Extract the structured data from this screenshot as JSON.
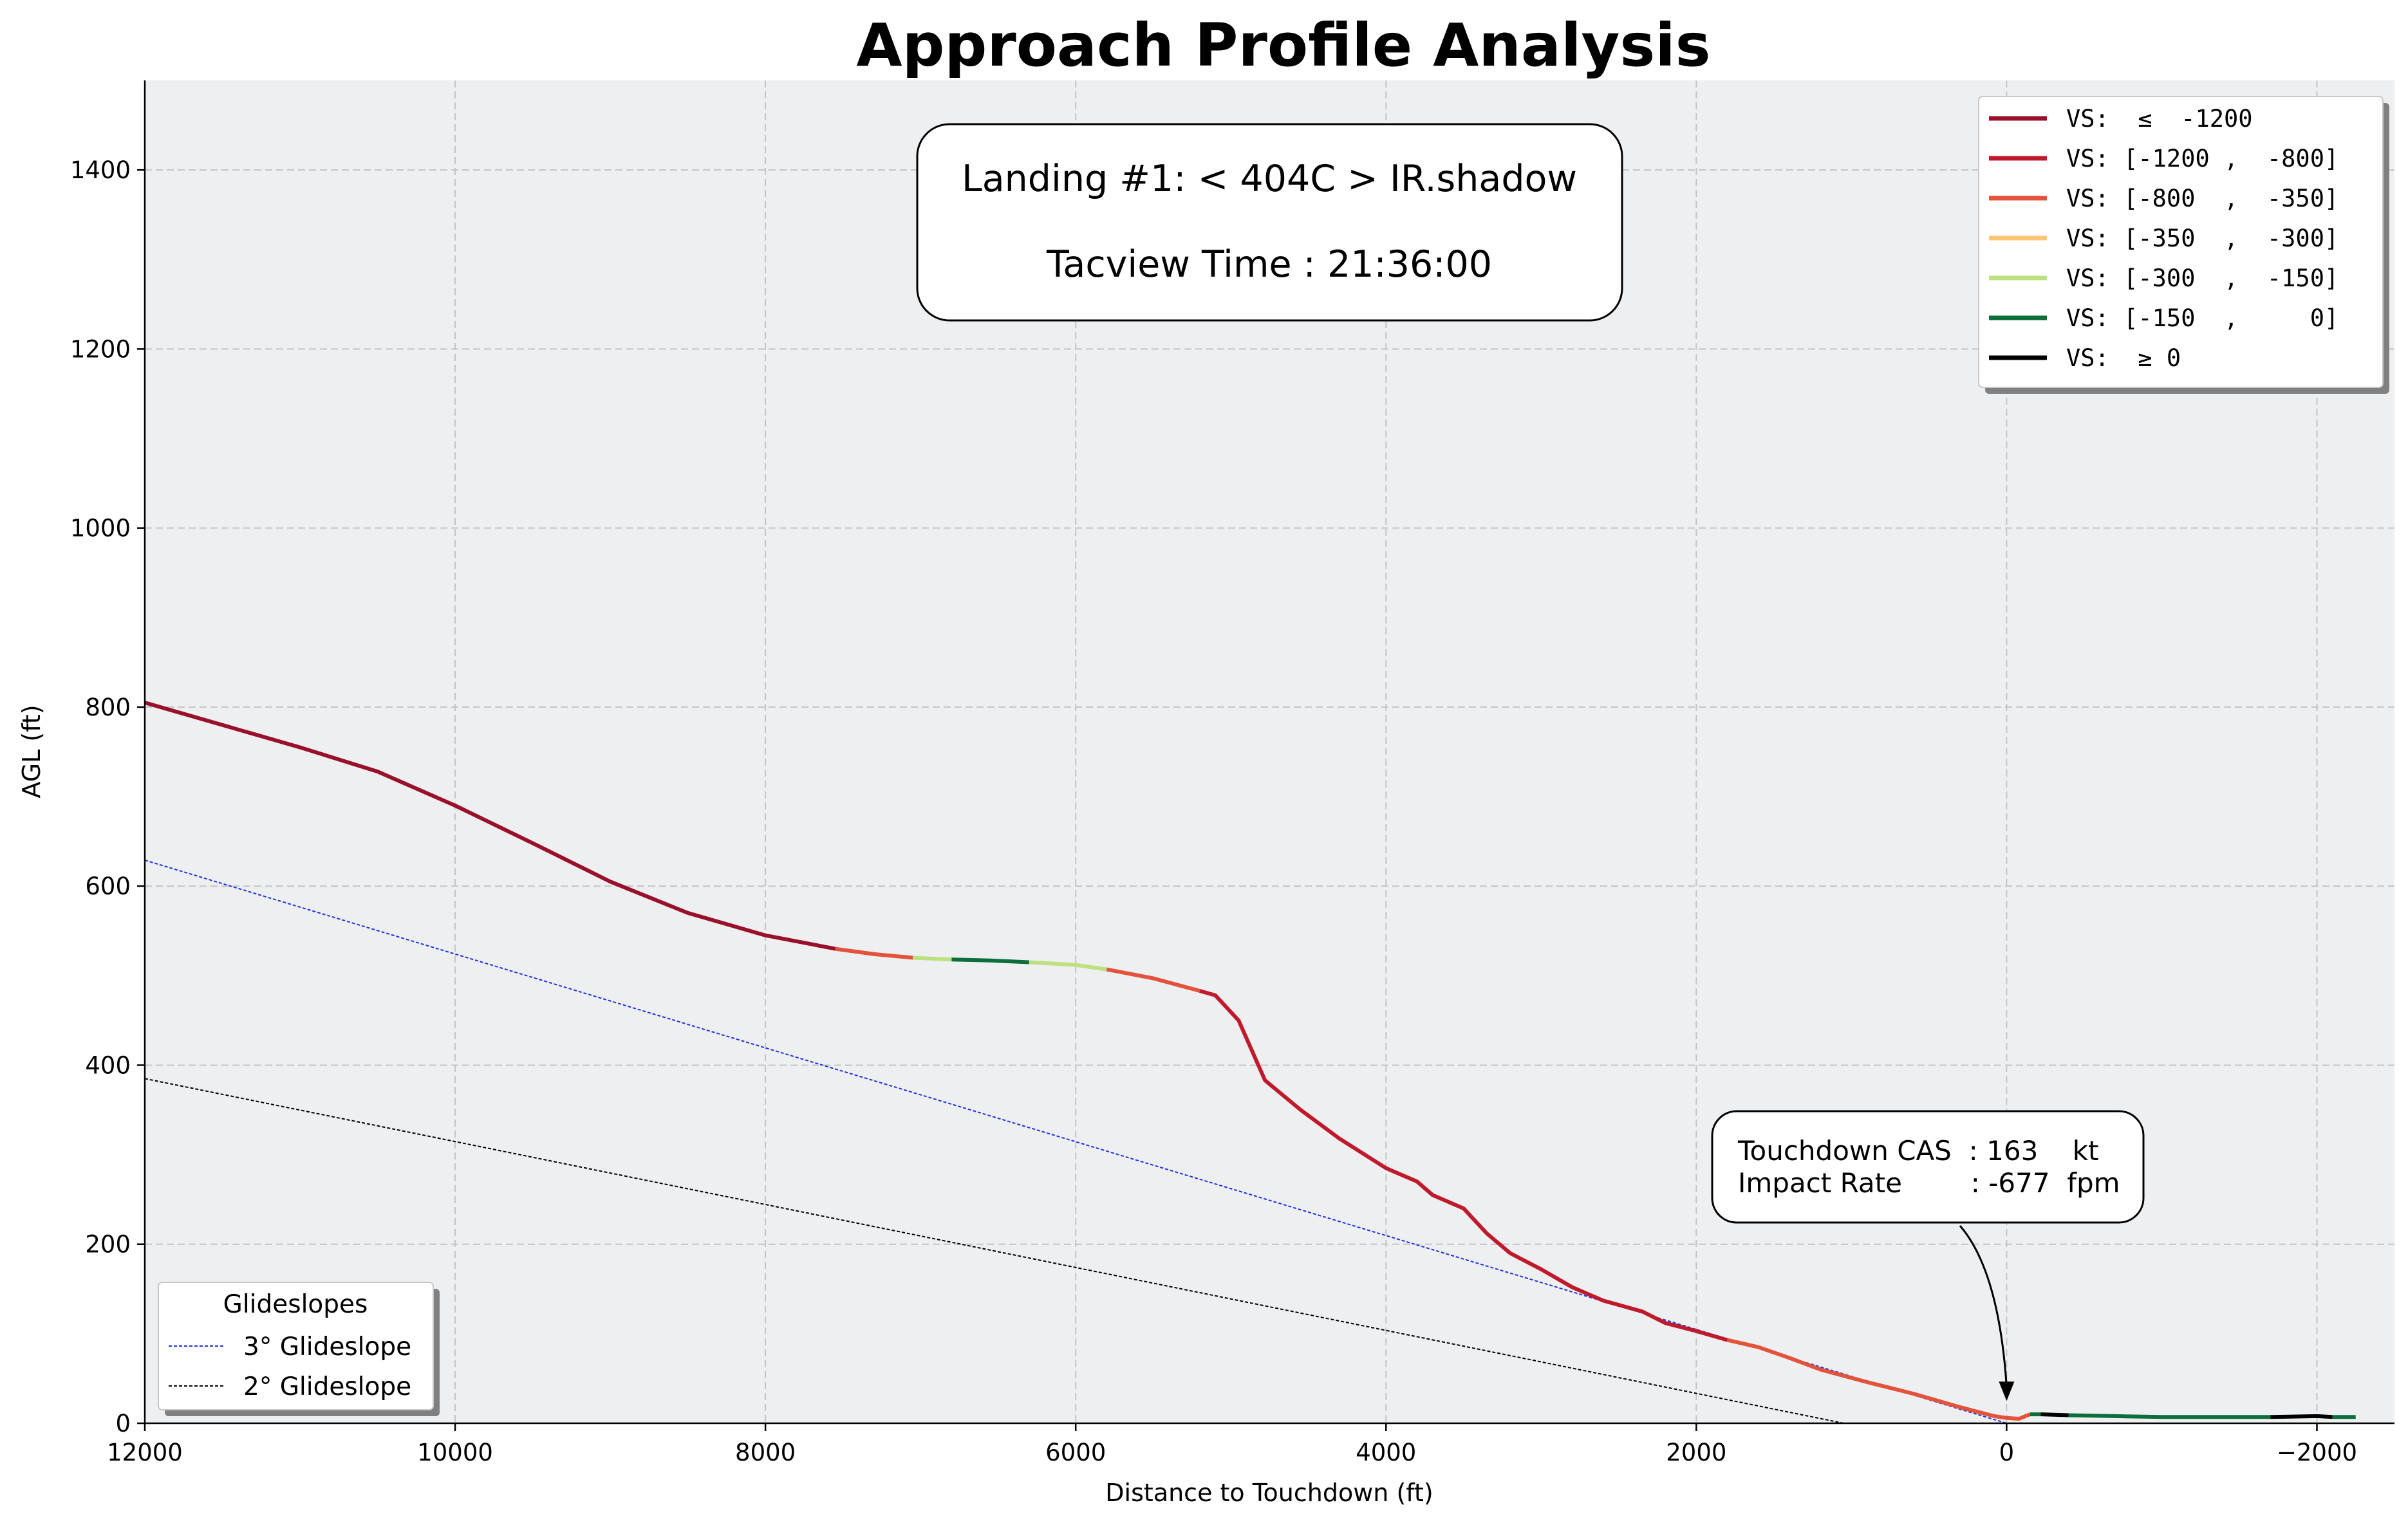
{
  "chart_data": {
    "type": "line",
    "title": "Approach Profile Analysis",
    "xlabel": "Distance to Touchdown (ft)",
    "ylabel": "AGL (ft)",
    "xlim": [
      12000,
      -2500
    ],
    "ylim": [
      0,
      1500
    ],
    "x_axis_inverted": true,
    "xticks": [
      12000,
      10000,
      8000,
      6000,
      4000,
      2000,
      0,
      -2000
    ],
    "xtick_labels": [
      "12000",
      "10000",
      "8000",
      "6000",
      "4000",
      "2000",
      "0",
      "−2000"
    ],
    "yticks": [
      0,
      200,
      400,
      600,
      800,
      1000,
      1200,
      1400
    ],
    "ytick_labels": [
      "0",
      "200",
      "400",
      "600",
      "800",
      "1000",
      "1200",
      "1400"
    ],
    "grid": true,
    "info_box": {
      "line1": "Landing #1: < 404C > IR.shadow",
      "line2": "Tacview Time : 21:36:00"
    },
    "annotation": {
      "line1": "Touchdown CAS  : 163    kt",
      "line2": "Impact Rate        : -677  fpm",
      "arrow_target": [
        0,
        25
      ]
    },
    "vs_legend": {
      "placement": "top-right",
      "entries": [
        {
          "label": "VS:  ≤  -1200",
          "color": "#99102a"
        },
        {
          "label": "VS: [-1200 ,  -800]",
          "color": "#bf1a2b"
        },
        {
          "label": "VS: [-800  ,  -350]",
          "color": "#e3523a"
        },
        {
          "label": "VS: [-350  ,  -300]",
          "color": "#fdc672"
        },
        {
          "label": "VS: [-300  ,  -150]",
          "color": "#bde17f"
        },
        {
          "label": "VS: [-150  ,     0]",
          "color": "#0c6e3a"
        },
        {
          "label": "VS:  ≥ 0",
          "color": "#000000"
        }
      ]
    },
    "glideslope_legend": {
      "title": "Glideslopes",
      "placement": "lower-left",
      "entries": [
        {
          "label": "3° Glideslope",
          "color": "#1f2fe0"
        },
        {
          "label": "2° Glideslope",
          "color": "#000000"
        }
      ]
    },
    "glideslopes": [
      {
        "name": "3° Glideslope",
        "color": "#1f2fe0",
        "points": [
          [
            12000,
            629
          ],
          [
            0,
            0
          ]
        ]
      },
      {
        "name": "2° Glideslope",
        "color": "#000000",
        "points": [
          [
            12000,
            385
          ],
          [
            1050,
            0
          ]
        ]
      }
    ],
    "series": [
      {
        "color": "#99102a",
        "points": [
          [
            12000,
            805
          ],
          [
            11500,
            780
          ],
          [
            11000,
            755
          ],
          [
            10500,
            728
          ],
          [
            10000,
            690
          ],
          [
            9500,
            648
          ],
          [
            9000,
            605
          ],
          [
            8500,
            570
          ],
          [
            8000,
            545
          ],
          [
            7700,
            535
          ],
          [
            7550,
            530
          ]
        ]
      },
      {
        "color": "#e3523a",
        "points": [
          [
            7550,
            530
          ],
          [
            7300,
            524
          ],
          [
            7050,
            520
          ]
        ]
      },
      {
        "color": "#bde17f",
        "points": [
          [
            7050,
            520
          ],
          [
            6800,
            518
          ]
        ]
      },
      {
        "color": "#0c6e3a",
        "points": [
          [
            6800,
            518
          ],
          [
            6550,
            517
          ],
          [
            6300,
            515
          ]
        ]
      },
      {
        "color": "#bde17f",
        "points": [
          [
            6300,
            515
          ],
          [
            6000,
            512
          ],
          [
            5800,
            507
          ]
        ]
      },
      {
        "color": "#e3523a",
        "points": [
          [
            5800,
            507
          ],
          [
            5500,
            497
          ],
          [
            5200,
            483
          ]
        ]
      },
      {
        "color": "#bf1a2b",
        "points": [
          [
            5200,
            483
          ],
          [
            5100,
            478
          ],
          [
            4950,
            450
          ],
          [
            4780,
            383
          ],
          [
            4550,
            350
          ],
          [
            4300,
            318
          ],
          [
            4000,
            285
          ],
          [
            3800,
            270
          ],
          [
            3700,
            255
          ],
          [
            3500,
            240
          ],
          [
            3350,
            212
          ],
          [
            3200,
            190
          ],
          [
            3000,
            172
          ],
          [
            2800,
            152
          ],
          [
            2600,
            137
          ],
          [
            2350,
            125
          ],
          [
            2200,
            112
          ],
          [
            2000,
            103
          ],
          [
            1800,
            93
          ]
        ]
      },
      {
        "color": "#e3523a",
        "points": [
          [
            1800,
            93
          ],
          [
            1600,
            85
          ],
          [
            1400,
            73
          ],
          [
            1200,
            60
          ],
          [
            900,
            46
          ],
          [
            600,
            33
          ],
          [
            300,
            18
          ],
          [
            80,
            8
          ],
          [
            0,
            6
          ],
          [
            -80,
            5
          ],
          [
            -150,
            10
          ]
        ]
      },
      {
        "color": "#0c6e3a",
        "points": [
          [
            -150,
            10
          ],
          [
            -220,
            10
          ]
        ]
      },
      {
        "color": "#000000",
        "points": [
          [
            -220,
            10
          ],
          [
            -400,
            9
          ]
        ]
      },
      {
        "color": "#0c6e3a",
        "points": [
          [
            -400,
            9
          ],
          [
            -700,
            8
          ],
          [
            -1000,
            7
          ],
          [
            -1400,
            7
          ],
          [
            -1700,
            7
          ]
        ]
      },
      {
        "color": "#000000",
        "points": [
          [
            -1700,
            7
          ],
          [
            -2000,
            8
          ],
          [
            -2100,
            7
          ]
        ]
      },
      {
        "color": "#0c6e3a",
        "points": [
          [
            -2100,
            7
          ],
          [
            -2250,
            7
          ]
        ]
      }
    ]
  }
}
